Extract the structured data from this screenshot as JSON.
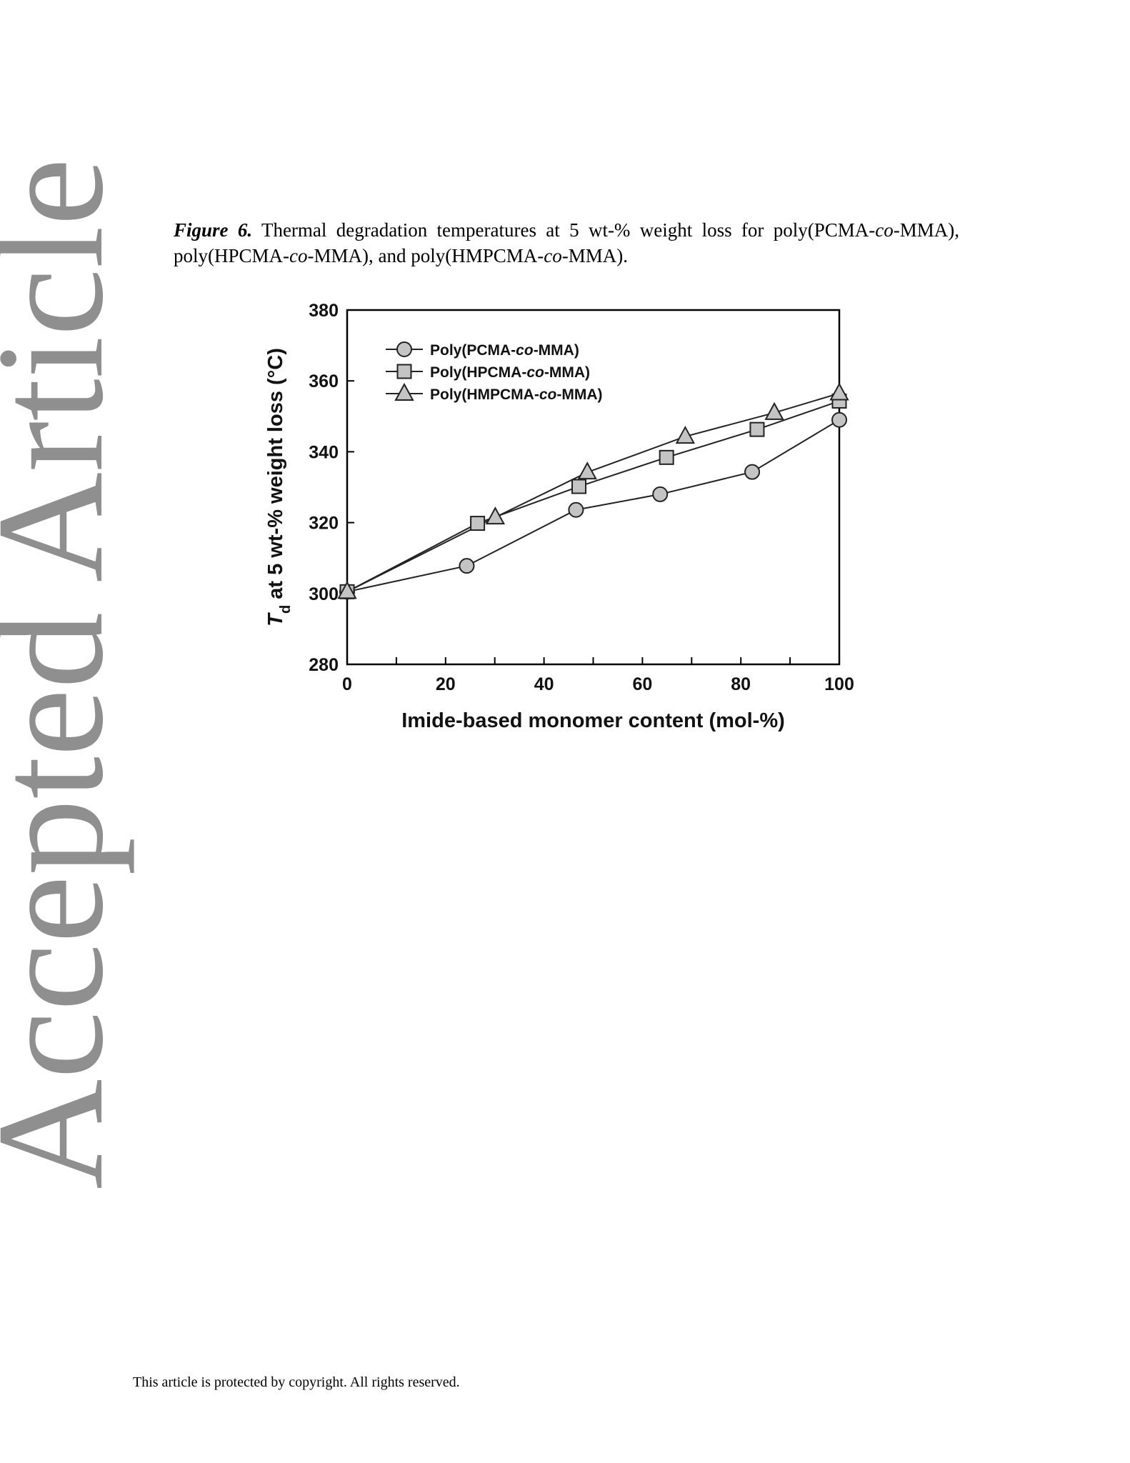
{
  "watermark": {
    "text": "Accepted Article"
  },
  "caption": {
    "label": "Figure 6.",
    "parts": [
      {
        "text": " Thermal degradation temperatures at 5 wt-% weight loss for poly(PCMA-",
        "italic": false
      },
      {
        "text": "co",
        "italic": true
      },
      {
        "text": "-MMA), poly(HPCMA-",
        "italic": false
      },
      {
        "text": "co",
        "italic": true
      },
      {
        "text": "-MMA), and poly(HMPCMA-",
        "italic": false
      },
      {
        "text": "co",
        "italic": true
      },
      {
        "text": "-MMA).",
        "italic": false
      }
    ]
  },
  "footer": {
    "text": "This article is protected by copyright. All rights reserved."
  },
  "colors": {
    "marker_fill": "#c4c4c4",
    "line": "#222222",
    "frame": "#000000",
    "watermark": "#8f8f8f"
  },
  "chart_data": {
    "type": "line",
    "xlabel": "Imide-based monomer content (mol-%)",
    "ylabel_parts": [
      {
        "text": "T",
        "italic": true
      },
      {
        "text": "d",
        "sub": true
      },
      {
        "text": " at 5 wt-% weight loss (°C)"
      }
    ],
    "xlim": [
      0,
      100
    ],
    "ylim": [
      280,
      380
    ],
    "xticks": [
      0,
      20,
      40,
      60,
      80,
      100
    ],
    "xminor": [
      10,
      30,
      50,
      70,
      90
    ],
    "yticks": [
      280,
      300,
      320,
      340,
      360,
      380
    ],
    "grid": false,
    "legend": {
      "position": "top-left"
    },
    "series": [
      {
        "name_parts": [
          {
            "text": "Poly(PCMA-"
          },
          {
            "text": "co",
            "italic": true
          },
          {
            "text": "-MMA)"
          }
        ],
        "marker": "circle",
        "x": [
          0,
          24.3,
          46.5,
          63.6,
          82.3,
          100
        ],
        "y": [
          300.5,
          307.8,
          323.6,
          328.0,
          334.3,
          349.0
        ]
      },
      {
        "name_parts": [
          {
            "text": "Poly(HPCMA-"
          },
          {
            "text": "co",
            "italic": true
          },
          {
            "text": "-MMA)"
          }
        ],
        "marker": "square",
        "x": [
          0,
          26.5,
          47.1,
          64.9,
          83.3,
          100
        ],
        "y": [
          300.5,
          319.8,
          330.2,
          338.4,
          346.3,
          354.3
        ]
      },
      {
        "name_parts": [
          {
            "text": "Poly(HMPCMA-"
          },
          {
            "text": "co",
            "italic": true
          },
          {
            "text": "-MMA)"
          }
        ],
        "marker": "triangle",
        "x": [
          0,
          30.1,
          48.8,
          68.7,
          86.8,
          100
        ],
        "y": [
          300.5,
          321.5,
          334.2,
          344.3,
          351.0,
          356.5
        ]
      }
    ]
  }
}
